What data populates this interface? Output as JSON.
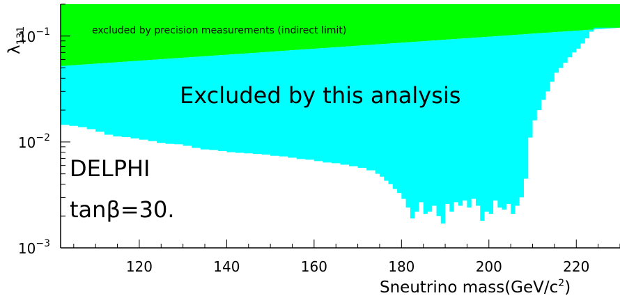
{
  "chart_data": {
    "type": "area",
    "title": "",
    "xlabel": {
      "text": "Sneutrino mass(GeV/c",
      "sup": "2",
      "close": ")"
    },
    "ylabel": {
      "base": "λ",
      "sub": "131"
    },
    "xlim": [
      102,
      230
    ],
    "ylim": [
      0.001,
      0.2
    ],
    "yscale": "log",
    "x_ticks": [
      {
        "value": 120,
        "label": "120"
      },
      {
        "value": 140,
        "label": "140"
      },
      {
        "value": 160,
        "label": "160"
      },
      {
        "value": 180,
        "label": "180"
      },
      {
        "value": 200,
        "label": "200"
      },
      {
        "value": 220,
        "label": "220"
      }
    ],
    "y_ticks": [
      {
        "value": 0.001,
        "base": "10",
        "exp": "−3"
      },
      {
        "value": 0.01,
        "base": "10",
        "exp": "−2"
      },
      {
        "value": 0.1,
        "base": "10",
        "exp": "−1"
      }
    ],
    "annotations": {
      "indirect": "excluded by precision measurements (indirect limit)",
      "direct": "Excluded by this analysis",
      "experiment": "DELPHI",
      "tanbeta": "tanβ=30."
    },
    "series": [
      {
        "role": "indirect-limit",
        "color": "#00ff00",
        "x": [
          102,
          230
        ],
        "y": [
          0.052,
          0.12
        ]
      },
      {
        "role": "direct-limit",
        "color": "#00ffff",
        "x": [
          102,
          104,
          106,
          108,
          110,
          112,
          114,
          116,
          118,
          120,
          122,
          124,
          126,
          128,
          130,
          132,
          134,
          136,
          138,
          140,
          142,
          144,
          146,
          148,
          150,
          152,
          154,
          156,
          158,
          160,
          162,
          164,
          166,
          168,
          170,
          172,
          174,
          175,
          176,
          177,
          178,
          179,
          180,
          181,
          182,
          183,
          184,
          185,
          186,
          187,
          188,
          189,
          190,
          191,
          192,
          193,
          194,
          195,
          196,
          197,
          198,
          199,
          200,
          201,
          202,
          203,
          204,
          205,
          206,
          207,
          208,
          209,
          210,
          211,
          212,
          213,
          214,
          215,
          216,
          217,
          218,
          219,
          220,
          221,
          222,
          223,
          224,
          226,
          228,
          230
        ],
        "y": [
          0.0145,
          0.0142,
          0.0138,
          0.0132,
          0.0125,
          0.0117,
          0.0113,
          0.0111,
          0.0108,
          0.0105,
          0.0102,
          0.0098,
          0.0096,
          0.0095,
          0.0092,
          0.0088,
          0.0085,
          0.0084,
          0.0082,
          0.008,
          0.0079,
          0.0078,
          0.0077,
          0.0076,
          0.0074,
          0.0073,
          0.0071,
          0.0069,
          0.0068,
          0.0066,
          0.0064,
          0.0063,
          0.0061,
          0.0059,
          0.0057,
          0.0054,
          0.005,
          0.0047,
          0.0043,
          0.004,
          0.0036,
          0.0033,
          0.0029,
          0.0024,
          0.0019,
          0.0022,
          0.0027,
          0.0021,
          0.0022,
          0.0025,
          0.002,
          0.0017,
          0.0026,
          0.0022,
          0.0027,
          0.0025,
          0.0028,
          0.0024,
          0.0029,
          0.0025,
          0.0018,
          0.0022,
          0.0021,
          0.0028,
          0.0024,
          0.0023,
          0.0026,
          0.0021,
          0.0025,
          0.003,
          0.0045,
          0.011,
          0.016,
          0.02,
          0.025,
          0.03,
          0.037,
          0.045,
          0.05,
          0.056,
          0.063,
          0.07,
          0.076,
          0.085,
          0.095,
          0.11,
          0.12,
          0.12,
          0.12,
          0.12
        ]
      }
    ],
    "grid": false,
    "legend": "none"
  }
}
